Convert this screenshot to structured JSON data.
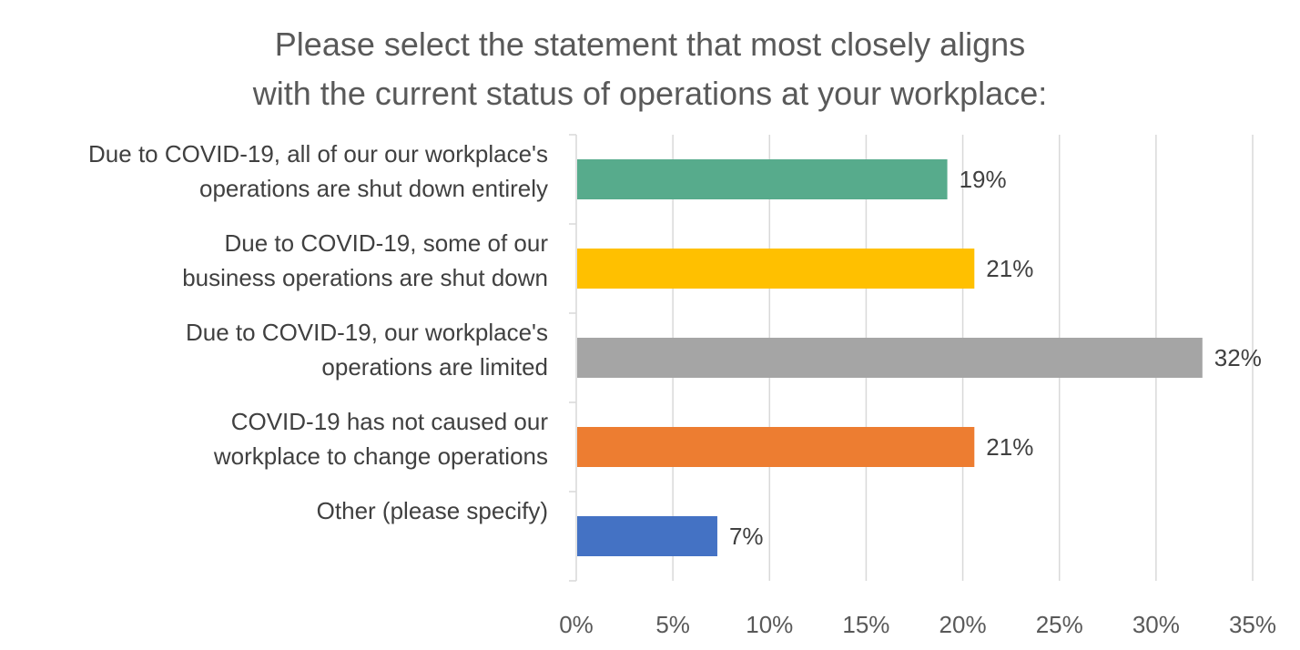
{
  "chart_data": {
    "type": "bar",
    "orientation": "horizontal",
    "title": [
      "Please select the statement that most closely aligns",
      "with the current status of operations at your workplace:"
    ],
    "categories": [
      [
        "Due to COVID-19, all of our our workplace's",
        "operations are shut down entirely"
      ],
      [
        "Due to COVID-19, some of our",
        "business operations are shut down"
      ],
      [
        "Due to COVID-19, our workplace's",
        "operations are limited"
      ],
      [
        "COVID-19 has not caused our",
        "workplace to change operations"
      ],
      [
        "Other (please specify)"
      ]
    ],
    "values": [
      19.2,
      20.6,
      32.4,
      20.6,
      7.3
    ],
    "data_labels": [
      "19%",
      "21%",
      "32%",
      "21%",
      "7%"
    ],
    "colors": [
      "#57AB8C",
      "#FFC000",
      "#A5A5A5",
      "#ED7D31",
      "#4472C4"
    ],
    "xlim": [
      0,
      35
    ],
    "xticks": [
      0,
      5,
      10,
      15,
      20,
      25,
      30,
      35
    ],
    "xtick_labels": [
      "0%",
      "5%",
      "10%",
      "15%",
      "20%",
      "25%",
      "30%",
      "35%"
    ],
    "grid": true,
    "xlabel": "",
    "ylabel": ""
  }
}
